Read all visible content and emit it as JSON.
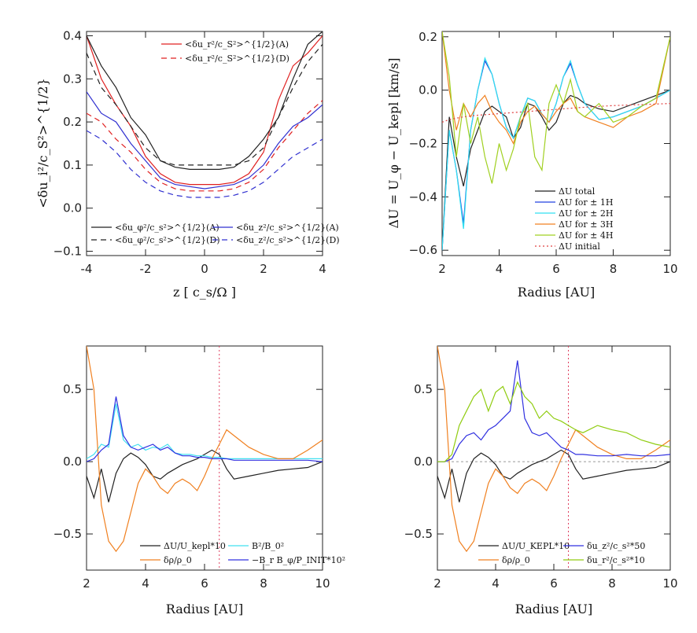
{
  "chart_data": [
    {
      "type": "line",
      "panel": "top-left",
      "xlabel": "z [ c_s/Ω ]",
      "ylabel": "<δu_i²/c_S²>^{1/2}",
      "xlim": [
        -4,
        4
      ],
      "ylim": [
        -0.11,
        0.41
      ],
      "xticks": [
        -4,
        -2,
        0,
        2,
        4
      ],
      "yticks": [
        -0.1,
        0.0,
        0.1,
        0.2,
        0.3,
        0.4
      ],
      "x": [
        -4.0,
        -3.5,
        -3.0,
        -2.5,
        -2.0,
        -1.5,
        -1.0,
        -0.5,
        0.0,
        0.5,
        1.0,
        1.5,
        2.0,
        2.5,
        3.0,
        3.5,
        4.0
      ],
      "series": [
        {
          "name": "<δu_r²/c_S²>^{1/2}(A)",
          "color": "#e02020",
          "dash": "solid",
          "values": [
            0.4,
            0.3,
            0.24,
            0.19,
            0.12,
            0.08,
            0.06,
            0.055,
            0.055,
            0.055,
            0.06,
            0.08,
            0.13,
            0.25,
            0.33,
            0.36,
            0.4
          ]
        },
        {
          "name": "<δu_r²/c_S²>^{1/2}(D)",
          "color": "#e02020",
          "dash": "dashed",
          "values": [
            0.22,
            0.2,
            0.16,
            0.13,
            0.09,
            0.06,
            0.045,
            0.04,
            0.04,
            0.04,
            0.045,
            0.06,
            0.09,
            0.14,
            0.18,
            0.22,
            0.25
          ]
        },
        {
          "name": "<δu_φ²/c_s²>^{1/2}(A)",
          "color": "#222222",
          "dash": "solid",
          "values": [
            0.4,
            0.33,
            0.28,
            0.21,
            0.17,
            0.11,
            0.095,
            0.09,
            0.09,
            0.09,
            0.095,
            0.12,
            0.16,
            0.21,
            0.3,
            0.38,
            0.41
          ]
        },
        {
          "name": "<δu_φ²/c_s²>^{1/2}(D)",
          "color": "#222222",
          "dash": "dashed",
          "values": [
            0.36,
            0.28,
            0.24,
            0.19,
            0.14,
            0.11,
            0.1,
            0.1,
            0.1,
            0.1,
            0.1,
            0.11,
            0.14,
            0.21,
            0.28,
            0.34,
            0.38
          ]
        },
        {
          "name": "<δu_z²/c_s²>^{1/2}(A)",
          "color": "#3030d0",
          "dash": "solid",
          "values": [
            0.27,
            0.22,
            0.2,
            0.15,
            0.11,
            0.07,
            0.055,
            0.05,
            0.045,
            0.05,
            0.055,
            0.07,
            0.1,
            0.15,
            0.19,
            0.21,
            0.24
          ]
        },
        {
          "name": "<δu_z²/c_s²>^{1/2}(D)",
          "color": "#3030d0",
          "dash": "dashed",
          "values": [
            0.18,
            0.16,
            0.13,
            0.09,
            0.06,
            0.04,
            0.03,
            0.025,
            0.025,
            0.025,
            0.03,
            0.04,
            0.06,
            0.09,
            0.12,
            0.14,
            0.16
          ]
        }
      ]
    },
    {
      "type": "line",
      "panel": "top-right",
      "xlabel": "Radius [AU]",
      "ylabel": "ΔU = U_φ − U_kepl [km/s]",
      "xlim": [
        2,
        10
      ],
      "ylim": [
        -0.62,
        0.22
      ],
      "xticks": [
        2,
        4,
        6,
        8,
        10
      ],
      "yticks": [
        -0.6,
        -0.4,
        -0.2,
        0.0,
        0.2
      ],
      "x": [
        2.0,
        2.25,
        2.5,
        2.75,
        3.0,
        3.25,
        3.5,
        3.75,
        4.0,
        4.25,
        4.5,
        4.75,
        5.0,
        5.25,
        5.5,
        5.75,
        6.0,
        6.25,
        6.5,
        6.75,
        7.0,
        7.5,
        8.0,
        8.5,
        9.0,
        9.5,
        10.0
      ],
      "series": [
        {
          "name": "ΔU total",
          "color": "#222222",
          "values": [
            -0.6,
            -0.1,
            -0.25,
            -0.36,
            -0.22,
            -0.15,
            -0.08,
            -0.06,
            -0.08,
            -0.1,
            -0.18,
            -0.14,
            -0.05,
            -0.06,
            -0.1,
            -0.15,
            -0.12,
            -0.05,
            -0.02,
            -0.03,
            -0.05,
            -0.07,
            -0.08,
            -0.06,
            -0.04,
            -0.02,
            0.0
          ]
        },
        {
          "name": "ΔU for ± 1H",
          "color": "#2040e0",
          "values": [
            -0.6,
            -0.15,
            -0.3,
            -0.5,
            -0.15,
            0.0,
            0.11,
            0.06,
            -0.05,
            -0.14,
            -0.18,
            -0.1,
            -0.03,
            -0.04,
            -0.09,
            -0.12,
            -0.05,
            0.05,
            0.1,
            0.02,
            -0.05,
            -0.11,
            -0.1,
            -0.08,
            -0.06,
            -0.03,
            0.0
          ]
        },
        {
          "name": "ΔU for ± 2H",
          "color": "#30e0f0",
          "values": [
            -0.6,
            -0.15,
            -0.3,
            -0.52,
            -0.15,
            0.0,
            0.12,
            0.06,
            -0.05,
            -0.14,
            -0.18,
            -0.1,
            -0.03,
            -0.04,
            -0.09,
            -0.12,
            -0.05,
            0.05,
            0.11,
            0.02,
            -0.05,
            -0.11,
            -0.1,
            -0.08,
            -0.06,
            -0.03,
            0.0
          ]
        },
        {
          "name": "ΔU for ± 3H",
          "color": "#f08020",
          "values": [
            0.22,
            0.0,
            -0.15,
            -0.05,
            -0.1,
            -0.05,
            -0.02,
            -0.08,
            -0.12,
            -0.15,
            -0.2,
            -0.12,
            -0.08,
            -0.06,
            -0.09,
            -0.12,
            -0.08,
            -0.05,
            -0.03,
            -0.08,
            -0.1,
            -0.12,
            -0.14,
            -0.1,
            -0.08,
            -0.05,
            0.2
          ]
        },
        {
          "name": "ΔU for ± 4H",
          "color": "#a0d020",
          "values": [
            0.22,
            0.05,
            -0.25,
            -0.05,
            -0.2,
            -0.1,
            -0.25,
            -0.35,
            -0.2,
            -0.3,
            -0.22,
            -0.1,
            -0.05,
            -0.25,
            -0.3,
            -0.05,
            0.02,
            -0.05,
            0.04,
            -0.08,
            -0.1,
            -0.05,
            -0.12,
            -0.1,
            -0.06,
            -0.03,
            0.2
          ]
        },
        {
          "name": "ΔU initial",
          "color": "#e04040",
          "dash": "dotted",
          "values": [
            -0.12,
            -0.11,
            -0.105,
            -0.1,
            -0.097,
            -0.094,
            -0.092,
            -0.09,
            -0.088,
            -0.086,
            -0.084,
            -0.082,
            -0.08,
            -0.078,
            -0.076,
            -0.074,
            -0.072,
            -0.07,
            -0.068,
            -0.066,
            -0.064,
            -0.061,
            -0.058,
            -0.056,
            -0.054,
            -0.052,
            -0.05
          ]
        }
      ]
    },
    {
      "type": "line",
      "panel": "bottom-left",
      "xlabel": "Radius [AU]",
      "ylabel": "",
      "xlim": [
        2,
        10
      ],
      "ylim": [
        -0.75,
        0.8
      ],
      "xticks": [
        2,
        4,
        6,
        8,
        10
      ],
      "yticks": [
        -0.5,
        0.0,
        0.5
      ],
      "vline": 6.5,
      "x": [
        2.0,
        2.25,
        2.5,
        2.75,
        3.0,
        3.25,
        3.5,
        3.75,
        4.0,
        4.25,
        4.5,
        4.75,
        5.0,
        5.25,
        5.5,
        5.75,
        6.0,
        6.25,
        6.5,
        6.75,
        7.0,
        7.5,
        8.0,
        8.5,
        9.0,
        9.5,
        10.0
      ],
      "series": [
        {
          "name": "ΔU/U_kepl*10",
          "color": "#222222",
          "values": [
            -0.1,
            -0.25,
            -0.05,
            -0.28,
            -0.08,
            0.02,
            0.06,
            0.03,
            -0.02,
            -0.1,
            -0.12,
            -0.08,
            -0.05,
            -0.02,
            0.0,
            0.02,
            0.05,
            0.08,
            0.05,
            -0.05,
            -0.12,
            -0.1,
            -0.08,
            -0.06,
            -0.05,
            -0.04,
            0.0
          ]
        },
        {
          "name": "B²/B_0²",
          "color": "#40e0f0",
          "values": [
            0.02,
            0.05,
            0.12,
            0.1,
            0.4,
            0.15,
            0.1,
            0.12,
            0.08,
            0.1,
            0.09,
            0.12,
            0.06,
            0.05,
            0.05,
            0.04,
            0.04,
            0.03,
            0.03,
            0.02,
            0.02,
            0.02,
            0.02,
            0.02,
            0.02,
            0.02,
            0.02
          ]
        },
        {
          "name": "δρ/ρ_0",
          "color": "#f08020",
          "values": [
            0.8,
            0.5,
            -0.3,
            -0.55,
            -0.62,
            -0.55,
            -0.35,
            -0.15,
            -0.05,
            -0.1,
            -0.18,
            -0.22,
            -0.15,
            -0.12,
            -0.15,
            -0.2,
            -0.1,
            0.02,
            0.12,
            0.22,
            0.18,
            0.1,
            0.05,
            0.02,
            0.02,
            0.08,
            0.15
          ]
        },
        {
          "name": "−B_r B_φ/P_INIT*10²",
          "color": "#3030e0",
          "values": [
            0.0,
            0.02,
            0.08,
            0.12,
            0.45,
            0.18,
            0.1,
            0.08,
            0.1,
            0.12,
            0.08,
            0.1,
            0.06,
            0.04,
            0.04,
            0.03,
            0.03,
            0.02,
            0.02,
            0.02,
            0.01,
            0.01,
            0.01,
            0.01,
            0.01,
            0.01,
            0.0
          ]
        }
      ]
    },
    {
      "type": "line",
      "panel": "bottom-right",
      "xlabel": "Radius [AU]",
      "ylabel": "",
      "xlim": [
        2,
        10
      ],
      "ylim": [
        -0.75,
        0.8
      ],
      "xticks": [
        2,
        4,
        6,
        8,
        10
      ],
      "yticks": [
        -0.5,
        0.0,
        0.5
      ],
      "vline": 6.5,
      "x": [
        2.0,
        2.25,
        2.5,
        2.75,
        3.0,
        3.25,
        3.5,
        3.75,
        4.0,
        4.25,
        4.5,
        4.75,
        5.0,
        5.25,
        5.5,
        5.75,
        6.0,
        6.25,
        6.5,
        6.75,
        7.0,
        7.5,
        8.0,
        8.5,
        9.0,
        9.5,
        10.0
      ],
      "series": [
        {
          "name": "ΔU/U_KEPL*10",
          "color": "#222222",
          "values": [
            -0.1,
            -0.25,
            -0.05,
            -0.28,
            -0.08,
            0.02,
            0.06,
            0.03,
            -0.02,
            -0.1,
            -0.12,
            -0.08,
            -0.05,
            -0.02,
            0.0,
            0.02,
            0.05,
            0.08,
            0.05,
            -0.05,
            -0.12,
            -0.1,
            -0.08,
            -0.06,
            -0.05,
            -0.04,
            0.0
          ]
        },
        {
          "name": "δρ/ρ_0",
          "color": "#f08020",
          "values": [
            0.8,
            0.5,
            -0.3,
            -0.55,
            -0.62,
            -0.55,
            -0.35,
            -0.15,
            -0.05,
            -0.1,
            -0.18,
            -0.22,
            -0.15,
            -0.12,
            -0.15,
            -0.2,
            -0.1,
            0.02,
            0.12,
            0.22,
            0.18,
            0.1,
            0.05,
            0.02,
            0.02,
            0.08,
            0.15
          ]
        },
        {
          "name": "δu_z²/c_s²*50",
          "color": "#3030e0",
          "values": [
            0.0,
            0.0,
            0.02,
            0.12,
            0.18,
            0.2,
            0.15,
            0.22,
            0.25,
            0.3,
            0.35,
            0.7,
            0.3,
            0.2,
            0.18,
            0.2,
            0.15,
            0.1,
            0.08,
            0.05,
            0.05,
            0.04,
            0.04,
            0.05,
            0.04,
            0.04,
            0.05
          ]
        },
        {
          "name": "δu_r²/c_s²*10",
          "color": "#90cc10",
          "values": [
            0.0,
            0.0,
            0.05,
            0.25,
            0.35,
            0.45,
            0.5,
            0.35,
            0.48,
            0.52,
            0.4,
            0.55,
            0.45,
            0.4,
            0.3,
            0.35,
            0.3,
            0.28,
            0.25,
            0.22,
            0.2,
            0.25,
            0.22,
            0.2,
            0.15,
            0.12,
            0.1
          ]
        }
      ]
    }
  ],
  "legends": {
    "tl_top": [
      "<δu_r²/c_S²>^{1/2}(A)",
      "<δu_r²/c_S²>^{1/2}(D)"
    ],
    "tl_bottom": [
      "<δu_φ²/c_s²>^{1/2}(A)",
      "<δu_φ²/c_s²>^{1/2}(D)",
      "<δu_z²/c_s²>^{1/2}(A)",
      "<δu_z²/c_s²>^{1/2}(D)"
    ],
    "tr": [
      "ΔU total",
      "ΔU for ± 1H",
      "ΔU for ± 2H",
      "ΔU for ± 3H",
      "ΔU for ± 4H",
      "ΔU initial"
    ],
    "bl": [
      "ΔU/U_kepl*10",
      "B²/B_0²",
      "δρ/ρ_0",
      "−B_r B_φ/P_INIT*10²"
    ],
    "br": [
      "ΔU/U_KEPL*10",
      "δu_z²/c_s²*50",
      "δρ/ρ_0",
      "δu_r²/c_s²*10"
    ]
  }
}
